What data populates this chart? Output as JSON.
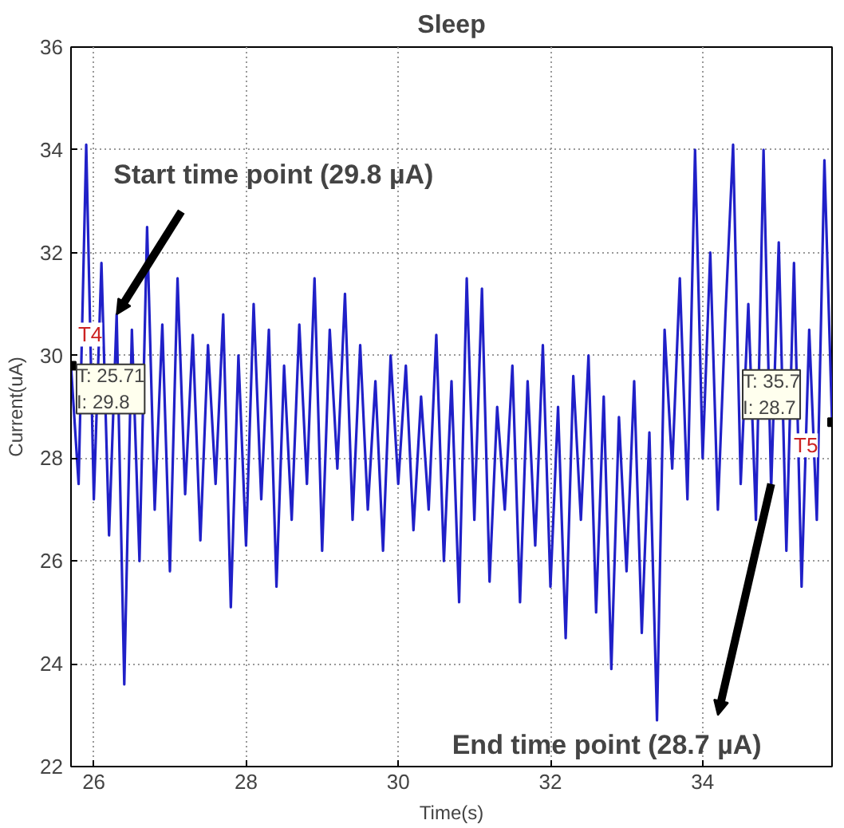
{
  "chart_data": {
    "type": "line",
    "title": "Sleep",
    "xlabel": "Time(s)",
    "ylabel": "Current(uA)",
    "xlim": [
      25.7,
      35.7
    ],
    "ylim": [
      22,
      36
    ],
    "xticks": [
      26,
      28,
      30,
      32,
      34
    ],
    "yticks": [
      22,
      24,
      26,
      28,
      30,
      32,
      34,
      36
    ],
    "grid": true,
    "line_style": "solid",
    "x": [
      25.7,
      25.8,
      25.9,
      26.0,
      26.1,
      26.2,
      26.3,
      26.4,
      26.5,
      26.6,
      26.7,
      26.8,
      26.9,
      27.0,
      27.1,
      27.2,
      27.3,
      27.4,
      27.5,
      27.6,
      27.7,
      27.8,
      27.9,
      28.0,
      28.1,
      28.2,
      28.3,
      28.4,
      28.5,
      28.6,
      28.7,
      28.8,
      28.9,
      29.0,
      29.1,
      29.2,
      29.3,
      29.4,
      29.5,
      29.6,
      29.7,
      29.8,
      29.9,
      30.0,
      30.1,
      30.2,
      30.3,
      30.4,
      30.5,
      30.6,
      30.7,
      30.8,
      30.9,
      31.0,
      31.1,
      31.2,
      31.3,
      31.4,
      31.5,
      31.6,
      31.7,
      31.8,
      31.9,
      32.0,
      32.1,
      32.2,
      32.3,
      32.4,
      32.5,
      32.6,
      32.7,
      32.8,
      32.9,
      33.0,
      33.1,
      33.2,
      33.3,
      33.4,
      33.5,
      33.6,
      33.7,
      33.8,
      33.9,
      34.0,
      34.1,
      34.2,
      34.3,
      34.4,
      34.5,
      34.6,
      34.7,
      34.8,
      34.9,
      35.0,
      35.1,
      35.2,
      35.3,
      35.4,
      35.5,
      35.6,
      35.7
    ],
    "series": [
      {
        "color": "#2020c8",
        "values": [
          29.8,
          27.5,
          34.1,
          27.2,
          31.8,
          26.5,
          30.8,
          23.6,
          30.5,
          26.0,
          32.5,
          27.0,
          30.6,
          25.8,
          31.5,
          27.3,
          30.4,
          26.4,
          30.2,
          27.5,
          30.8,
          25.1,
          30.0,
          26.3,
          31.0,
          27.2,
          30.5,
          25.5,
          29.8,
          26.8,
          30.6,
          27.5,
          31.5,
          26.2,
          30.5,
          27.8,
          31.2,
          26.8,
          30.2,
          27.0,
          29.5,
          26.2,
          30.0,
          27.5,
          29.8,
          26.6,
          29.2,
          27.0,
          30.4,
          26.0,
          29.5,
          25.2,
          31.5,
          26.8,
          31.3,
          25.6,
          29.0,
          27.0,
          29.8,
          25.2,
          29.5,
          26.3,
          30.2,
          25.5,
          29.0,
          24.5,
          29.6,
          26.8,
          30.0,
          25.0,
          29.2,
          23.9,
          28.8,
          25.8,
          29.5,
          24.6,
          28.5,
          22.9,
          30.5,
          27.8,
          31.5,
          27.2,
          34.0,
          28.0,
          32.0,
          27.0,
          30.8,
          34.1,
          27.5,
          31.0,
          26.8,
          34.0,
          27.4,
          32.2,
          26.2,
          31.8,
          25.5,
          30.5,
          26.8,
          33.8,
          28.7
        ]
      }
    ],
    "annotations": [
      {
        "text": "Start time point (29.8 µA)",
        "x": 26.3,
        "y": 30.8
      },
      {
        "text": "End time point (28.7 µA)",
        "x": 34.9,
        "y": 27.5
      },
      {
        "text": "T4",
        "x": 25.71,
        "y": 29.8
      },
      {
        "text": "T: 25.71\nI: 29.8",
        "x": 25.71,
        "y": 29.8
      },
      {
        "text": "T5",
        "x": 35.7,
        "y": 28.7
      },
      {
        "text": "T: 35.7\nI: 28.7",
        "x": 35.7,
        "y": 28.7
      }
    ]
  }
}
